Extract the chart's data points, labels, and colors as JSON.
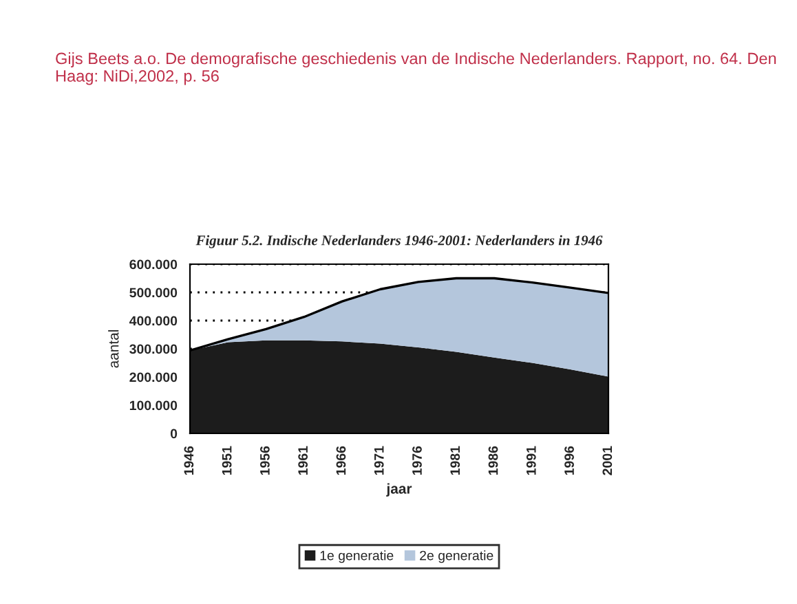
{
  "chart_data": {
    "type": "area",
    "stacked": true,
    "title": "Figuur 5.2. Indische Nederlanders 1946-2001: Nederlanders in 1946",
    "xlabel": "jaar",
    "ylabel": "aantal",
    "annotations": [
      "Gijs Beets a.o. De demografische geschiedenis van de Indische Nederlanders. Rapport, no. 64. Den Haag: NiDi,2002, p. 56"
    ],
    "x": [
      1946,
      1951,
      1956,
      1961,
      1966,
      1971,
      1976,
      1981,
      1986,
      1991,
      1996,
      2001
    ],
    "series": [
      {
        "name": "1e generatie",
        "color": "#1c1c1c",
        "values": [
          294000,
          323000,
          330000,
          330000,
          326000,
          318000,
          305000,
          289000,
          269000,
          250000,
          227000,
          201000
        ]
      },
      {
        "name": "2e generatie",
        "color": "#b4c6dc",
        "values": [
          0,
          11000,
          40000,
          83000,
          142000,
          193000,
          232000,
          261000,
          281000,
          285000,
          290000,
          297000
        ]
      }
    ],
    "xlim": [
      1946,
      2001
    ],
    "xticks": [
      1946,
      1951,
      1956,
      1961,
      1966,
      1971,
      1976,
      1981,
      1986,
      1991,
      1996,
      2001
    ],
    "ylim": [
      0,
      600000
    ],
    "yticks": [
      {
        "value": 0,
        "label": "0"
      },
      {
        "value": 100000,
        "label": "100.000"
      },
      {
        "value": 200000,
        "label": "200.000"
      },
      {
        "value": 300000,
        "label": "300.000"
      },
      {
        "value": 400000,
        "label": "400.000"
      },
      {
        "value": 500000,
        "label": "500.000"
      },
      {
        "value": 600000,
        "label": "600.000"
      }
    ],
    "grid": "y",
    "legend": "bottom"
  }
}
